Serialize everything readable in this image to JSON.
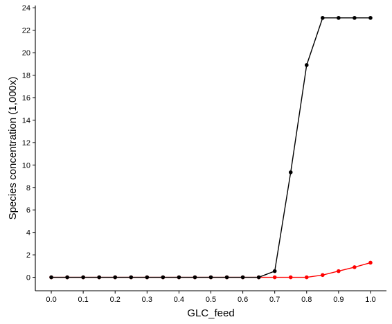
{
  "chart_data": {
    "type": "line",
    "title": "",
    "xlabel": "GLC_feed",
    "ylabel": "Species concentration (1,000x)",
    "xlim": [
      -0.05,
      1.05
    ],
    "ylim": [
      -1.2,
      24.2
    ],
    "xticks": [
      0.0,
      0.1,
      0.2,
      0.3,
      0.4,
      0.5,
      0.6,
      0.7,
      0.8,
      0.9,
      1.0
    ],
    "xtick_labels": [
      "0.0",
      "0.1",
      "0.2",
      "0.3",
      "0.4",
      "0.5",
      "0.6",
      "0.7",
      "0.8",
      "0.9",
      "1.0"
    ],
    "yticks": [
      0,
      2,
      4,
      6,
      8,
      10,
      12,
      14,
      16,
      18,
      20,
      22,
      24
    ],
    "ytick_labels": [
      "0",
      "2",
      "4",
      "6",
      "8",
      "10",
      "12",
      "14",
      "16",
      "18",
      "20",
      "22",
      "24"
    ],
    "grid": false,
    "legend": "none",
    "x": [
      0.0,
      0.05,
      0.1,
      0.15,
      0.2,
      0.25,
      0.3,
      0.35,
      0.4,
      0.45,
      0.5,
      0.55,
      0.6,
      0.65,
      0.7,
      0.75,
      0.8,
      0.85,
      0.9,
      0.95,
      1.0
    ],
    "series": [
      {
        "color": "#ff0000",
        "values": [
          0,
          0,
          0,
          0,
          0,
          0,
          0,
          0,
          0,
          0,
          0,
          0,
          0,
          0,
          0,
          0,
          0,
          0.2,
          0.55,
          0.9,
          1.3
        ]
      },
      {
        "color": "#000000",
        "values": [
          0,
          0,
          0,
          0,
          0,
          0,
          0,
          0,
          0,
          0,
          0,
          0,
          0,
          0,
          0.55,
          9.35,
          18.9,
          23.1,
          23.1,
          23.1,
          23.1
        ]
      }
    ]
  }
}
